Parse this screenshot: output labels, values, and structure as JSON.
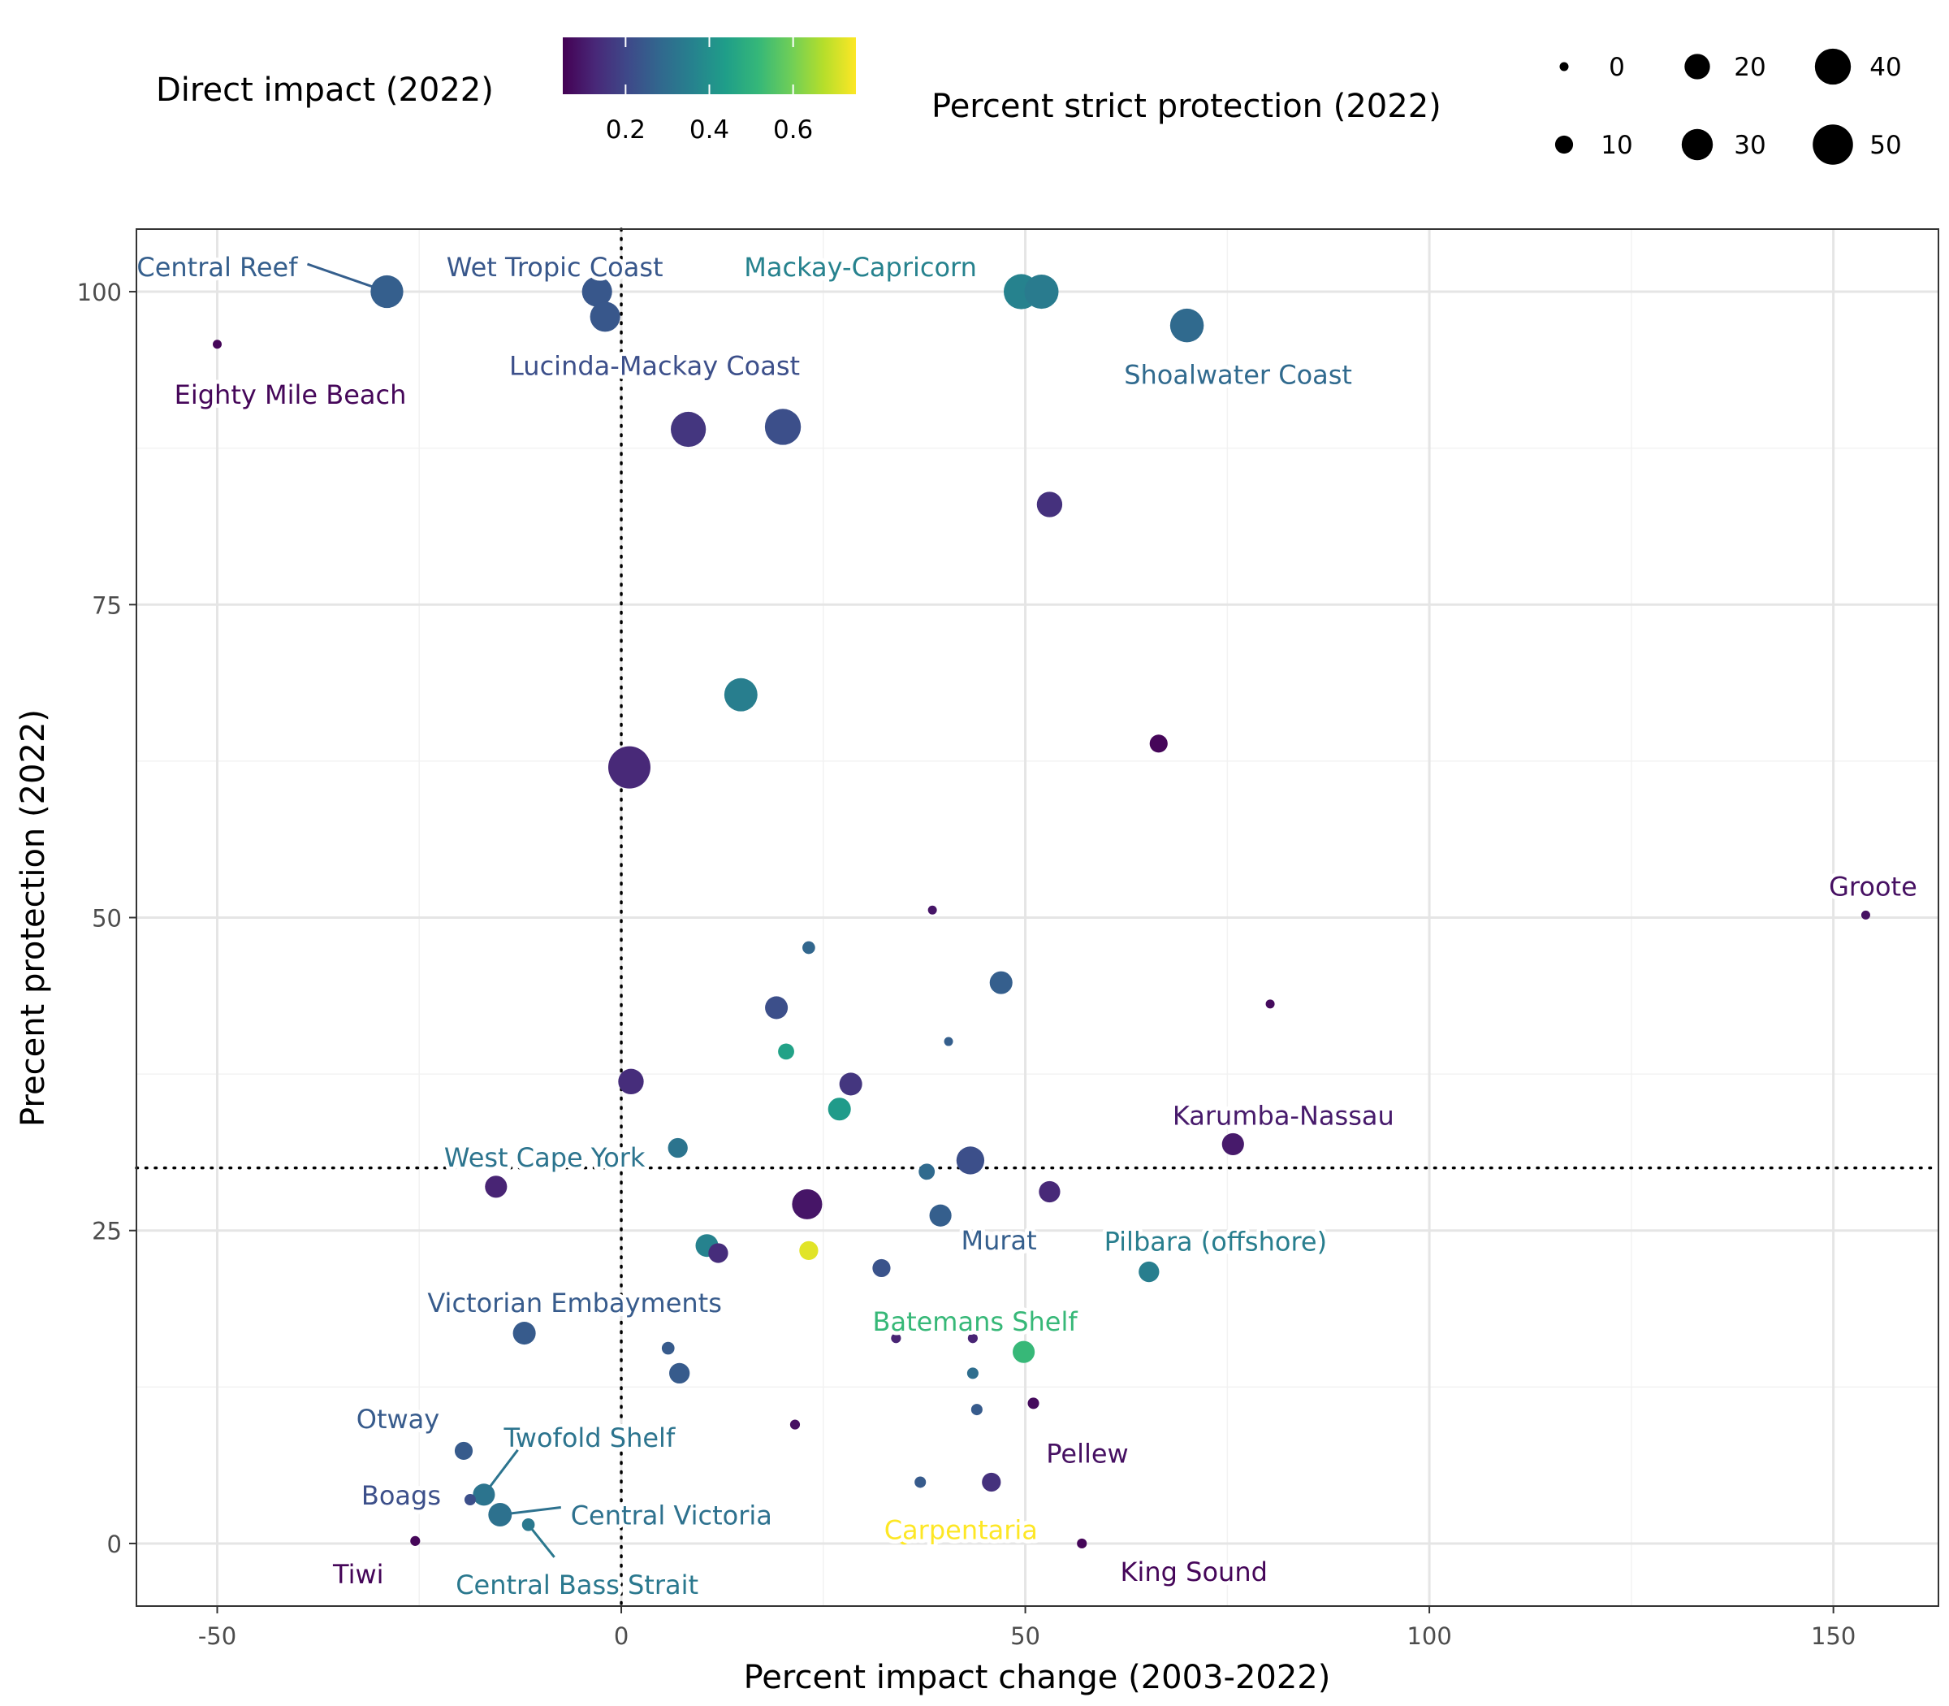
{
  "chart_data": {
    "type": "scatter",
    "xlabel": "Percent impact change (2003-2022)",
    "ylabel": "Precent protection (2022)",
    "xlim": [
      -60,
      163
    ],
    "ylim": [
      -5,
      105
    ],
    "x_ticks": [
      -50,
      0,
      50,
      100,
      150
    ],
    "y_ticks": [
      0,
      25,
      50,
      75,
      100
    ],
    "reference_lines": {
      "x": 0,
      "y": 30,
      "style": "dotted"
    },
    "grid": true,
    "color_legend": {
      "title": "Direct impact (2022)",
      "range": [
        0.05,
        0.75
      ],
      "ticks": [
        0.2,
        0.4,
        0.6
      ],
      "palette": [
        "#440154",
        "#482878",
        "#3e4989",
        "#31688e",
        "#26828e",
        "#1f9e89",
        "#35b779",
        "#6ece58",
        "#b5de2b",
        "#fde725"
      ]
    },
    "size_legend": {
      "title": "Percent strict protection (2022)",
      "values": [
        0,
        10,
        20,
        30,
        40,
        50
      ]
    },
    "points": [
      {
        "name": "Central Reef",
        "x": -29,
        "y": 100,
        "impact": 0.26,
        "strict": 33
      },
      {
        "name": "Wet Tropic Coast",
        "x": -3,
        "y": 100,
        "impact": 0.24,
        "strict": 28
      },
      {
        "name": "",
        "x": -2,
        "y": 98,
        "impact": 0.24,
        "strict": 28
      },
      {
        "name": "Eighty Mile Beach",
        "x": -50,
        "y": 95.8,
        "impact": 0.06,
        "strict": 0
      },
      {
        "name": "Mackay-Capricorn",
        "x": 49.5,
        "y": 100,
        "impact": 0.36,
        "strict": 38
      },
      {
        "name": "",
        "x": 52,
        "y": 100,
        "impact": 0.34,
        "strict": 36
      },
      {
        "name": "Shoalwater Coast",
        "x": 70,
        "y": 97.3,
        "impact": 0.29,
        "strict": 35
      },
      {
        "name": "Lucinda-Mackay Coast",
        "x": 20,
        "y": 89.2,
        "impact": 0.22,
        "strict": 40
      },
      {
        "name": "",
        "x": 8.3,
        "y": 89,
        "impact": 0.16,
        "strict": 38
      },
      {
        "name": "",
        "x": 53,
        "y": 83,
        "impact": 0.15,
        "strict": 20
      },
      {
        "name": "",
        "x": 14.8,
        "y": 67.8,
        "impact": 0.35,
        "strict": 34
      },
      {
        "name": "",
        "x": 1,
        "y": 62,
        "impact": 0.13,
        "strict": 55
      },
      {
        "name": "",
        "x": 66.5,
        "y": 63.9,
        "impact": 0.06,
        "strict": 10
      },
      {
        "name": "Groote",
        "x": 154,
        "y": 50.2,
        "impact": 0.08,
        "strict": 1
      },
      {
        "name": "",
        "x": 38.5,
        "y": 50.6,
        "impact": 0.09,
        "strict": 1
      },
      {
        "name": "",
        "x": 23.2,
        "y": 47.6,
        "impact": 0.28,
        "strict": 5
      },
      {
        "name": "",
        "x": 47,
        "y": 44.8,
        "impact": 0.26,
        "strict": 16
      },
      {
        "name": "",
        "x": 80.3,
        "y": 43.1,
        "impact": 0.07,
        "strict": 1
      },
      {
        "name": "",
        "x": 19.2,
        "y": 42.8,
        "impact": 0.22,
        "strict": 16
      },
      {
        "name": "",
        "x": 40.5,
        "y": 40.1,
        "impact": 0.26,
        "strict": 1
      },
      {
        "name": "",
        "x": 20.4,
        "y": 39.3,
        "impact": 0.45,
        "strict": 8
      },
      {
        "name": "",
        "x": 1.2,
        "y": 36.9,
        "impact": 0.14,
        "strict": 20
      },
      {
        "name": "",
        "x": 28.4,
        "y": 36.7,
        "impact": 0.16,
        "strict": 16
      },
      {
        "name": "",
        "x": 27,
        "y": 34.7,
        "impact": 0.43,
        "strict": 16
      },
      {
        "name": "Karumba-Nassau",
        "x": 75.7,
        "y": 31.9,
        "impact": 0.1,
        "strict": 15
      },
      {
        "name": "West Cape York",
        "x": 7,
        "y": 31.6,
        "impact": 0.32,
        "strict": 12
      },
      {
        "name": "",
        "x": 43.2,
        "y": 30.6,
        "impact": 0.22,
        "strict": 24
      },
      {
        "name": "",
        "x": 37.8,
        "y": 29.7,
        "impact": 0.29,
        "strict": 8
      },
      {
        "name": "",
        "x": -15.5,
        "y": 28.5,
        "impact": 0.12,
        "strict": 15
      },
      {
        "name": "",
        "x": 53,
        "y": 28.1,
        "impact": 0.13,
        "strict": 14
      },
      {
        "name": "",
        "x": 23,
        "y": 27.1,
        "impact": 0.09,
        "strict": 28
      },
      {
        "name": "Murat",
        "x": 39.5,
        "y": 26.2,
        "impact": 0.26,
        "strict": 15
      },
      {
        "name": "",
        "x": 10.6,
        "y": 23.8,
        "impact": 0.36,
        "strict": 16
      },
      {
        "name": "",
        "x": 12,
        "y": 23.2,
        "impact": 0.14,
        "strict": 12
      },
      {
        "name": "",
        "x": 23.2,
        "y": 23.4,
        "impact": 0.72,
        "strict": 11
      },
      {
        "name": "Pilbara (offshore)",
        "x": 65.3,
        "y": 21.7,
        "impact": 0.35,
        "strict": 13
      },
      {
        "name": "",
        "x": 32.2,
        "y": 22,
        "impact": 0.23,
        "strict": 10
      },
      {
        "name": "Victorian Embayments",
        "x": -12,
        "y": 16.8,
        "impact": 0.25,
        "strict": 16
      },
      {
        "name": "",
        "x": 34,
        "y": 16.4,
        "impact": 0.12,
        "strict": 3
      },
      {
        "name": "",
        "x": 43.5,
        "y": 16.4,
        "impact": 0.12,
        "strict": 3
      },
      {
        "name": "Batemans Shelf",
        "x": 49.8,
        "y": 15.3,
        "impact": 0.52,
        "strict": 15
      },
      {
        "name": "",
        "x": 5.8,
        "y": 15.6,
        "impact": 0.25,
        "strict": 5
      },
      {
        "name": "",
        "x": 7.2,
        "y": 13.6,
        "impact": 0.25,
        "strict": 13
      },
      {
        "name": "",
        "x": 43.5,
        "y": 13.6,
        "impact": 0.3,
        "strict": 4
      },
      {
        "name": "",
        "x": 51,
        "y": 11.2,
        "impact": 0.07,
        "strict": 4
      },
      {
        "name": "",
        "x": 44,
        "y": 10.7,
        "impact": 0.25,
        "strict": 4
      },
      {
        "name": "Pellew",
        "x": 21.5,
        "y": 9.5,
        "impact": 0.08,
        "strict": 3
      },
      {
        "name": "Otway",
        "x": -19.5,
        "y": 7.4,
        "impact": 0.25,
        "strict": 10
      },
      {
        "name": "",
        "x": 37,
        "y": 4.9,
        "impact": 0.25,
        "strict": 4
      },
      {
        "name": "",
        "x": 45.8,
        "y": 4.9,
        "impact": 0.15,
        "strict": 11
      },
      {
        "name": "Twofold Shelf",
        "x": -17,
        "y": 3.9,
        "impact": 0.32,
        "strict": 15
      },
      {
        "name": "Boags",
        "x": -18.7,
        "y": 3.5,
        "impact": 0.22,
        "strict": 4
      },
      {
        "name": "Central Victoria",
        "x": -15,
        "y": 2.3,
        "impact": 0.31,
        "strict": 17
      },
      {
        "name": "Central Bass Strait",
        "x": -11.5,
        "y": 1.5,
        "impact": 0.33,
        "strict": 5
      },
      {
        "name": "Tiwi",
        "x": -25.5,
        "y": 0.2,
        "impact": 0.06,
        "strict": 3
      },
      {
        "name": "Carpentaria",
        "x": 35,
        "y": 0.3,
        "impact": 0.75,
        "strict": 3
      },
      {
        "name": "King Sound",
        "x": 57,
        "y": 0,
        "impact": 0.06,
        "strict": 3
      }
    ]
  }
}
